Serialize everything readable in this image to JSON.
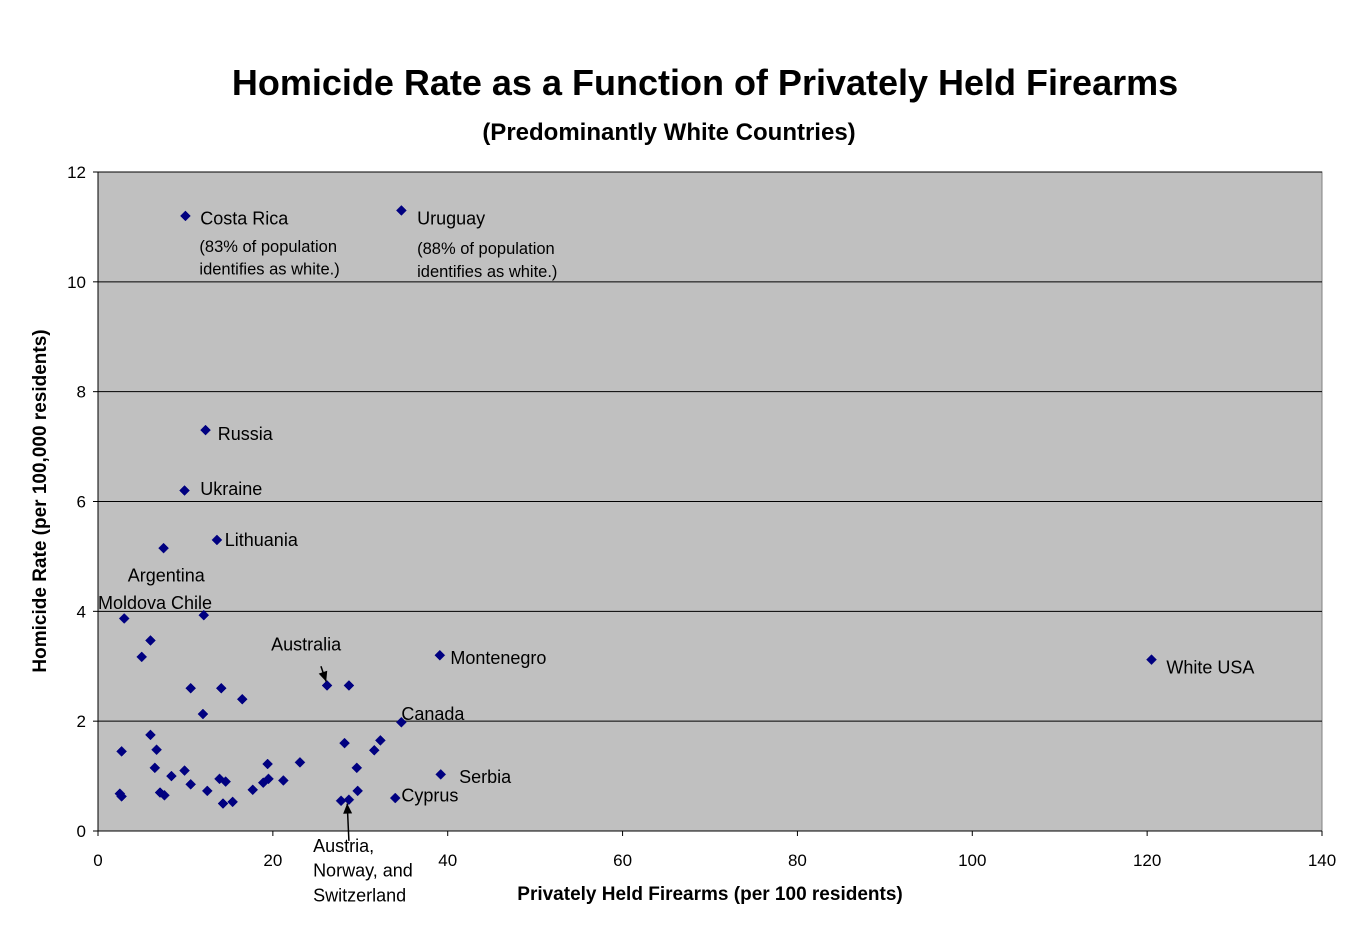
{
  "chart_data": {
    "type": "scatter",
    "title": "Homicide Rate as a Function of Privately Held Firearms",
    "subtitle": "(Predominantly White Countries)",
    "xlabel": "Privately Held Firearms (per 100 residents)",
    "ylabel": "Homicide Rate (per 100,000 residents)",
    "xlim": [
      0,
      140
    ],
    "ylim": [
      0,
      12
    ],
    "xticks": [
      "0",
      "20",
      "40",
      "60",
      "80",
      "100",
      "120",
      "140"
    ],
    "yticks": [
      "0",
      "2",
      "4",
      "6",
      "8",
      "10",
      "12"
    ],
    "grid": "horizontal",
    "plot_background": "#c0c0c0",
    "marker_color": "#000080",
    "points": [
      {
        "x": 10.0,
        "y": 11.2
      },
      {
        "x": 34.7,
        "y": 11.3
      },
      {
        "x": 12.3,
        "y": 7.3
      },
      {
        "x": 9.9,
        "y": 6.2
      },
      {
        "x": 13.6,
        "y": 5.3
      },
      {
        "x": 7.5,
        "y": 5.15
      },
      {
        "x": 3.0,
        "y": 3.87
      },
      {
        "x": 12.1,
        "y": 3.93
      },
      {
        "x": 6.0,
        "y": 3.47
      },
      {
        "x": 5.0,
        "y": 3.17
      },
      {
        "x": 39.1,
        "y": 3.2
      },
      {
        "x": 120.5,
        "y": 3.12
      },
      {
        "x": 26.2,
        "y": 2.65
      },
      {
        "x": 28.7,
        "y": 2.65
      },
      {
        "x": 10.6,
        "y": 2.6
      },
      {
        "x": 14.1,
        "y": 2.6
      },
      {
        "x": 16.5,
        "y": 2.4
      },
      {
        "x": 12.0,
        "y": 2.13
      },
      {
        "x": 34.7,
        "y": 1.98
      },
      {
        "x": 6.0,
        "y": 1.75
      },
      {
        "x": 2.7,
        "y": 1.45
      },
      {
        "x": 6.7,
        "y": 1.48
      },
      {
        "x": 28.2,
        "y": 1.6
      },
      {
        "x": 31.6,
        "y": 1.47
      },
      {
        "x": 32.3,
        "y": 1.65
      },
      {
        "x": 6.5,
        "y": 1.15
      },
      {
        "x": 8.4,
        "y": 1.0
      },
      {
        "x": 9.9,
        "y": 1.1
      },
      {
        "x": 19.4,
        "y": 1.22
      },
      {
        "x": 23.1,
        "y": 1.25
      },
      {
        "x": 29.6,
        "y": 1.15
      },
      {
        "x": 39.2,
        "y": 1.03
      },
      {
        "x": 10.6,
        "y": 0.85
      },
      {
        "x": 13.9,
        "y": 0.95
      },
      {
        "x": 14.6,
        "y": 0.9
      },
      {
        "x": 18.9,
        "y": 0.88
      },
      {
        "x": 19.5,
        "y": 0.95
      },
      {
        "x": 21.2,
        "y": 0.92
      },
      {
        "x": 12.5,
        "y": 0.73
      },
      {
        "x": 17.7,
        "y": 0.75
      },
      {
        "x": 2.5,
        "y": 0.68
      },
      {
        "x": 2.7,
        "y": 0.63
      },
      {
        "x": 7.1,
        "y": 0.7
      },
      {
        "x": 7.6,
        "y": 0.65
      },
      {
        "x": 29.7,
        "y": 0.73
      },
      {
        "x": 14.3,
        "y": 0.5
      },
      {
        "x": 15.4,
        "y": 0.53
      },
      {
        "x": 27.8,
        "y": 0.55
      },
      {
        "x": 28.7,
        "y": 0.57
      },
      {
        "x": 34.0,
        "y": 0.6
      }
    ],
    "annotations": [
      {
        "text": "Costa Rica",
        "x": 11.7,
        "y": 11.15,
        "size": "normal"
      },
      {
        "text": "(83% of population",
        "x": 11.6,
        "y": 10.65,
        "size": "small"
      },
      {
        "text": "identifies as white.)",
        "x": 11.6,
        "y": 10.24,
        "size": "small"
      },
      {
        "text": "Uruguay",
        "x": 36.5,
        "y": 11.15,
        "size": "normal"
      },
      {
        "text": "(88% of population",
        "x": 36.5,
        "y": 10.62,
        "size": "small"
      },
      {
        "text": "identifies as white.)",
        "x": 36.5,
        "y": 10.2,
        "size": "small"
      },
      {
        "text": "Russia",
        "x": 13.7,
        "y": 7.23,
        "size": "normal"
      },
      {
        "text": "Ukraine",
        "x": 11.7,
        "y": 6.23,
        "size": "normal"
      },
      {
        "text": "Lithuania",
        "x": 14.5,
        "y": 5.3,
        "size": "normal"
      },
      {
        "text": "Argentina",
        "x": 3.4,
        "y": 4.65,
        "size": "normal"
      },
      {
        "text": "Moldova Chile",
        "x": 0.0,
        "y": 4.15,
        "size": "normal"
      },
      {
        "text": "Australia",
        "x": 19.8,
        "y": 3.4,
        "size": "normal"
      },
      {
        "text": "Montenegro",
        "x": 40.3,
        "y": 3.15,
        "size": "normal"
      },
      {
        "text": "White USA",
        "x": 122.2,
        "y": 2.98,
        "size": "normal"
      },
      {
        "text": "Canada",
        "x": 34.7,
        "y": 2.13,
        "size": "normal"
      },
      {
        "text": "Serbia",
        "x": 41.3,
        "y": 0.98,
        "size": "normal"
      },
      {
        "text": "Cyprus",
        "x": 34.7,
        "y": 0.65,
        "size": "normal"
      },
      {
        "text": "Austria,",
        "x": 24.6,
        "y": -0.27,
        "size": "normal"
      },
      {
        "text": "Norway, and",
        "x": 24.6,
        "y": -0.72,
        "size": "normal"
      },
      {
        "text": "Switzerland",
        "x": 24.6,
        "y": -1.17,
        "size": "normal"
      }
    ],
    "arrows": [
      {
        "from": [
          25.5,
          3.0
        ],
        "to": [
          26.1,
          2.72
        ]
      },
      {
        "from": [
          28.7,
          -0.18
        ],
        "to": [
          28.5,
          0.5
        ]
      }
    ]
  }
}
